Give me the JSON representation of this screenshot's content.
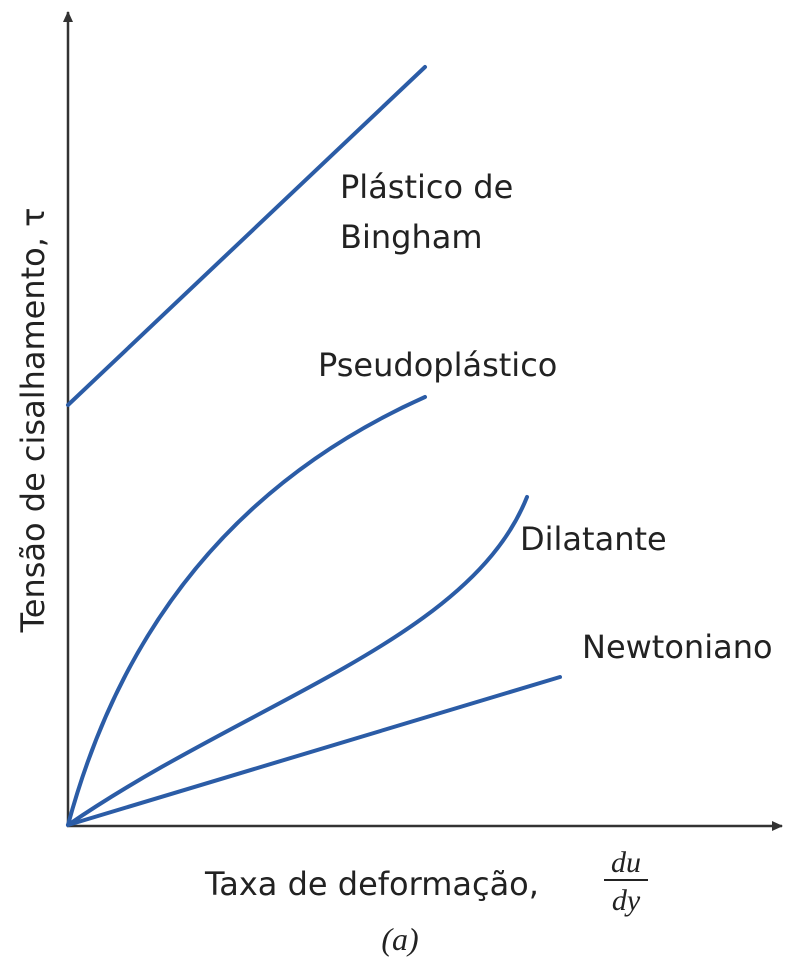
{
  "y_axis_label": "Tensão de cisalhamento, τ",
  "x_axis_label": "Taxa de deformação,",
  "x_axis_fraction": {
    "numerator": "du",
    "denominator": "dy"
  },
  "caption": "(a)",
  "curves": [
    {
      "label_lines": [
        "Plástico de",
        "Bingham"
      ]
    },
    {
      "label_lines": [
        "Pseudoplástico"
      ]
    },
    {
      "label_lines": [
        "Dilatante"
      ]
    },
    {
      "label_lines": [
        "Newtoniano"
      ]
    }
  ]
}
